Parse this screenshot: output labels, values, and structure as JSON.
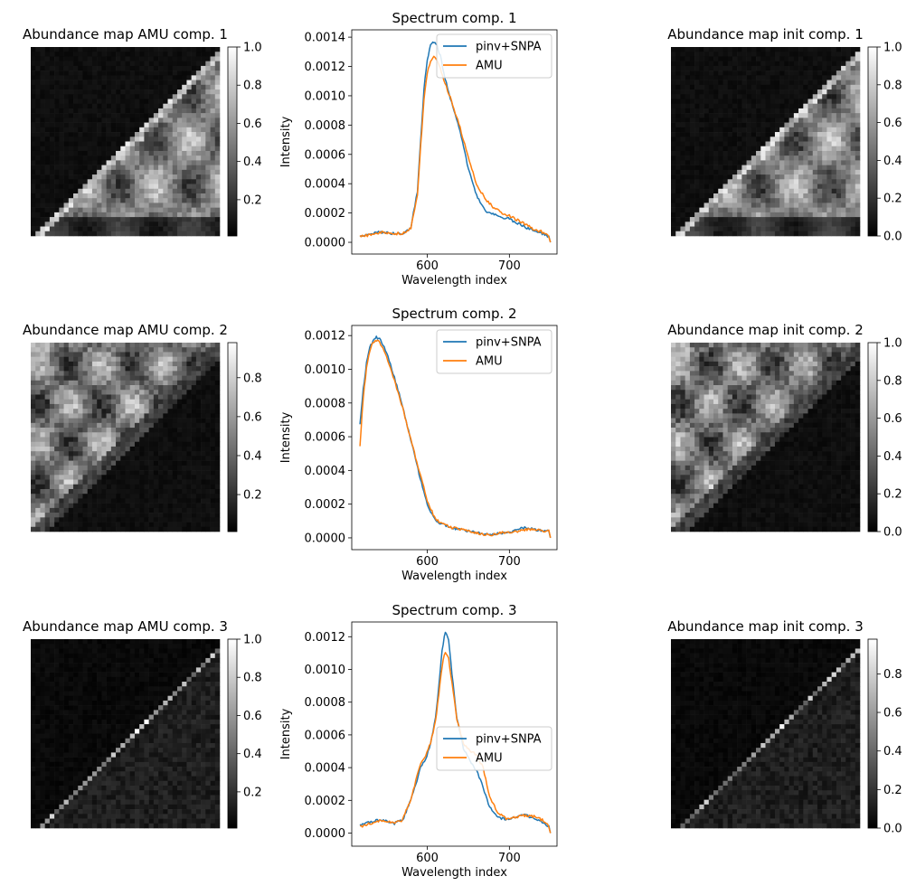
{
  "chart_data": [
    {
      "type": "heatmap",
      "title": "Abundance map AMU comp. 1",
      "colormap": "gray",
      "colorbar_ticks": [
        0.2,
        0.4,
        0.6,
        0.8,
        1.0
      ],
      "colorbar_tick_labels": [
        "0.2",
        "0.4",
        "0.6",
        "0.8",
        "1.0"
      ],
      "colorbar_range": [
        0.01,
        1.0
      ],
      "pattern": "comp1"
    },
    {
      "type": "line",
      "title": "Spectrum comp. 1",
      "xlabel": "Wavelength index",
      "ylabel": "Intensity",
      "xlim": [
        508,
        758
      ],
      "ylim": [
        -8e-05,
        0.00145
      ],
      "xticks": [
        600,
        700
      ],
      "xtick_labels": [
        "600",
        "700"
      ],
      "yticks": [
        0,
        0.0002,
        0.0004,
        0.0006,
        0.0008,
        0.001,
        0.0012,
        0.0014
      ],
      "ytick_labels": [
        "0.0000",
        "0.0002",
        "0.0004",
        "0.0006",
        "0.0008",
        "0.0010",
        "0.0012",
        "0.0014"
      ],
      "legend_location": "top-right",
      "series": [
        {
          "name": "pinv+SNPA",
          "color": "#1f77b4",
          "x": [
            518,
            530,
            545,
            560,
            570,
            580,
            588,
            592,
            596,
            600,
            604,
            608,
            612,
            616,
            620,
            628,
            640,
            650,
            660,
            670,
            680,
            690,
            700,
            710,
            720,
            730,
            740,
            748,
            750
          ],
          "y": [
            4e-05,
            6e-05,
            7e-05,
            6e-05,
            6e-05,
            0.0001,
            0.00035,
            0.0007,
            0.00105,
            0.00125,
            0.00134,
            0.00137,
            0.00134,
            0.00127,
            0.00116,
            0.00098,
            0.00076,
            0.0005,
            0.00032,
            0.00022,
            0.00019,
            0.00017,
            0.00016,
            0.00013,
            0.0001,
            8e-05,
            6e-05,
            4e-05,
            0.0
          ]
        },
        {
          "name": "AMU",
          "color": "#ff7f0e",
          "x": [
            518,
            530,
            545,
            560,
            570,
            580,
            588,
            592,
            596,
            600,
            604,
            608,
            612,
            616,
            620,
            628,
            640,
            650,
            660,
            670,
            680,
            690,
            700,
            710,
            720,
            730,
            740,
            748,
            750
          ],
          "y": [
            4e-05,
            5e-05,
            7e-05,
            6e-05,
            6e-05,
            0.0001,
            0.00033,
            0.00066,
            0.00098,
            0.00116,
            0.00123,
            0.00126,
            0.00124,
            0.00119,
            0.00111,
            0.00099,
            0.00078,
            0.00058,
            0.0004,
            0.0003,
            0.00024,
            0.0002,
            0.00018,
            0.00015,
            0.00012,
            9e-05,
            7e-05,
            4e-05,
            0.0
          ]
        }
      ]
    },
    {
      "type": "heatmap",
      "title": "Abundance map init comp. 1",
      "colormap": "gray",
      "colorbar_ticks": [
        0.0,
        0.2,
        0.4,
        0.6,
        0.8,
        1.0
      ],
      "colorbar_tick_labels": [
        "0.0",
        "0.2",
        "0.4",
        "0.6",
        "0.8",
        "1.0"
      ],
      "colorbar_range": [
        0.0,
        1.0
      ],
      "pattern": "comp1"
    },
    {
      "type": "heatmap",
      "title": "Abundance map AMU comp. 2",
      "colormap": "gray",
      "colorbar_ticks": [
        0.2,
        0.4,
        0.6,
        0.8
      ],
      "colorbar_tick_labels": [
        "0.2",
        "0.4",
        "0.6",
        "0.8"
      ],
      "colorbar_range": [
        0.01,
        0.98
      ],
      "pattern": "comp2"
    },
    {
      "type": "line",
      "title": "Spectrum comp. 2",
      "xlabel": "Wavelength index",
      "ylabel": "Intensity",
      "xlim": [
        508,
        758
      ],
      "ylim": [
        -7e-05,
        0.00126
      ],
      "xticks": [
        600,
        700
      ],
      "xtick_labels": [
        "600",
        "700"
      ],
      "yticks": [
        0,
        0.0002,
        0.0004,
        0.0006,
        0.0008,
        0.001,
        0.0012
      ],
      "ytick_labels": [
        "0.0000",
        "0.0002",
        "0.0004",
        "0.0006",
        "0.0008",
        "0.0010",
        "0.0012"
      ],
      "legend_location": "top-right",
      "series": [
        {
          "name": "pinv+SNPA",
          "color": "#1f77b4",
          "x": [
            518,
            522,
            526,
            530,
            534,
            538,
            542,
            546,
            552,
            560,
            570,
            580,
            590,
            600,
            610,
            620,
            630,
            640,
            650,
            660,
            670,
            680,
            690,
            700,
            710,
            720,
            730,
            740,
            748,
            750
          ],
          "y": [
            0.00068,
            0.00088,
            0.00104,
            0.00113,
            0.00117,
            0.00119,
            0.00118,
            0.00115,
            0.00108,
            0.00095,
            0.00078,
            0.00058,
            0.00038,
            0.0002,
            0.0001,
            8e-05,
            6e-05,
            5e-05,
            4e-05,
            3e-05,
            2e-05,
            2e-05,
            3e-05,
            3e-05,
            5e-05,
            6e-05,
            5e-05,
            4e-05,
            4e-05,
            0.0
          ]
        },
        {
          "name": "AMU",
          "color": "#ff7f0e",
          "x": [
            518,
            522,
            526,
            530,
            534,
            538,
            542,
            546,
            552,
            560,
            570,
            580,
            590,
            600,
            610,
            620,
            630,
            640,
            650,
            660,
            670,
            680,
            690,
            700,
            710,
            720,
            730,
            740,
            748,
            750
          ],
          "y": [
            0.00055,
            0.00083,
            0.00101,
            0.00111,
            0.00116,
            0.00117,
            0.00116,
            0.00112,
            0.00105,
            0.00093,
            0.00077,
            0.00058,
            0.0004,
            0.00022,
            0.00011,
            8e-05,
            6e-05,
            5e-05,
            4e-05,
            3e-05,
            2e-05,
            2e-05,
            3e-05,
            3e-05,
            4e-05,
            5e-05,
            5e-05,
            4e-05,
            4e-05,
            0.0
          ]
        }
      ]
    },
    {
      "type": "heatmap",
      "title": "Abundance map init comp. 2",
      "colormap": "gray",
      "colorbar_ticks": [
        0.0,
        0.2,
        0.4,
        0.6,
        0.8,
        1.0
      ],
      "colorbar_tick_labels": [
        "0.0",
        "0.2",
        "0.4",
        "0.6",
        "0.8",
        "1.0"
      ],
      "colorbar_range": [
        0.0,
        1.0
      ],
      "pattern": "comp2"
    },
    {
      "type": "heatmap",
      "title": "Abundance map AMU comp. 3",
      "colormap": "gray",
      "colorbar_ticks": [
        0.2,
        0.4,
        0.6,
        0.8,
        1.0
      ],
      "colorbar_tick_labels": [
        "0.2",
        "0.4",
        "0.6",
        "0.8",
        "1.0"
      ],
      "colorbar_range": [
        0.01,
        1.0
      ],
      "pattern": "comp3"
    },
    {
      "type": "line",
      "title": "Spectrum comp. 3",
      "xlabel": "Wavelength index",
      "ylabel": "Intensity",
      "xlim": [
        508,
        758
      ],
      "ylim": [
        -8e-05,
        0.00129
      ],
      "xticks": [
        600,
        700
      ],
      "xtick_labels": [
        "600",
        "700"
      ],
      "yticks": [
        0,
        0.0002,
        0.0004,
        0.0006,
        0.0008,
        0.001,
        0.0012
      ],
      "ytick_labels": [
        "0.0000",
        "0.0002",
        "0.0004",
        "0.0006",
        "0.0008",
        "0.0010",
        "0.0012"
      ],
      "legend_location": "center-right",
      "series": [
        {
          "name": "pinv+SNPA",
          "color": "#1f77b4",
          "x": [
            518,
            530,
            545,
            560,
            570,
            580,
            586,
            592,
            598,
            604,
            610,
            614,
            618,
            622,
            626,
            630,
            636,
            644,
            652,
            660,
            668,
            676,
            686,
            696,
            710,
            720,
            730,
            740,
            748,
            750
          ],
          "y": [
            5e-05,
            7e-05,
            8e-05,
            6e-05,
            8e-05,
            0.0002,
            0.0003,
            0.0004,
            0.00045,
            0.00055,
            0.0007,
            0.0009,
            0.00112,
            0.00123,
            0.00118,
            0.00098,
            0.0007,
            0.00052,
            0.00044,
            0.00038,
            0.00028,
            0.00016,
            0.0001,
            8e-05,
            0.0001,
            0.00011,
            9e-05,
            7e-05,
            4e-05,
            0.0
          ]
        },
        {
          "name": "AMU",
          "color": "#ff7f0e",
          "x": [
            518,
            530,
            545,
            560,
            570,
            580,
            586,
            592,
            598,
            604,
            610,
            614,
            618,
            622,
            626,
            630,
            636,
            644,
            652,
            660,
            668,
            676,
            686,
            696,
            710,
            720,
            730,
            740,
            748,
            750
          ],
          "y": [
            4e-05,
            6e-05,
            8e-05,
            6e-05,
            8e-05,
            0.00021,
            0.00032,
            0.00042,
            0.00047,
            0.00055,
            0.00068,
            0.00085,
            0.00102,
            0.00111,
            0.00107,
            0.00092,
            0.0007,
            0.00055,
            0.0005,
            0.00048,
            0.0004,
            0.00022,
            0.00012,
            9e-05,
            0.0001,
            0.00011,
            0.0001,
            8e-05,
            4e-05,
            0.0
          ]
        }
      ]
    },
    {
      "type": "heatmap",
      "title": "Abundance map init comp. 3",
      "colormap": "gray",
      "colorbar_ticks": [
        0.0,
        0.2,
        0.4,
        0.6,
        0.8
      ],
      "colorbar_tick_labels": [
        "0.0",
        "0.2",
        "0.4",
        "0.6",
        "0.8"
      ],
      "colorbar_range": [
        0.0,
        0.98
      ],
      "pattern": "comp3"
    }
  ]
}
